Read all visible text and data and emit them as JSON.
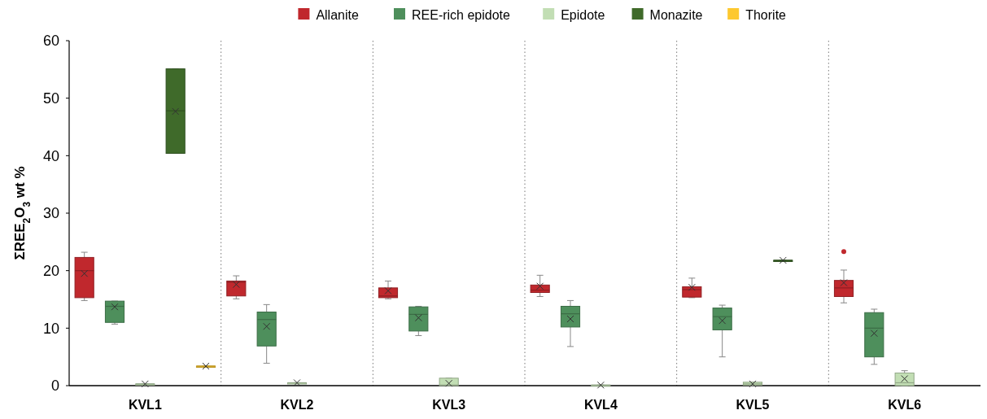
{
  "chart_data": {
    "type": "box",
    "ylabel": "ΣREE$_{2}$O$_{3}$ wt %",
    "categories": [
      "KVL1",
      "KVL2",
      "KVL3",
      "KVL4",
      "KVL5",
      "KVL6"
    ],
    "ylim": [
      0,
      60
    ],
    "yticks": [
      0,
      10,
      20,
      30,
      40,
      50,
      60
    ],
    "grid": false,
    "legend": "top",
    "marker": "cross",
    "series": [
      {
        "name": "Allanite",
        "color": "#c0282d",
        "boxes": [
          {
            "low": 14.8,
            "q1": 15.3,
            "median": 20.0,
            "q3": 22.3,
            "high": 23.2,
            "mean": 19.5
          },
          {
            "low": 15.1,
            "q1": 15.6,
            "median": 18.0,
            "q3": 18.2,
            "high": 19.1,
            "mean": 17.6
          },
          {
            "low": 15.1,
            "q1": 15.3,
            "median": 15.6,
            "q3": 17.0,
            "high": 18.2,
            "mean": 16.5
          },
          {
            "low": 15.5,
            "q1": 16.2,
            "median": 16.6,
            "q3": 17.5,
            "high": 19.2,
            "mean": 17.3
          },
          {
            "low": 15.3,
            "q1": 15.4,
            "median": 16.7,
            "q3": 17.2,
            "high": 18.7,
            "mean": 17.1
          },
          {
            "low": 14.4,
            "q1": 15.5,
            "median": 17.0,
            "q3": 18.3,
            "high": 20.1,
            "mean": 17.9,
            "outliers": [
              23.3
            ]
          }
        ]
      },
      {
        "name": "REE-rich epidote",
        "color": "#4e8f5c",
        "boxes": [
          {
            "low": 10.7,
            "q1": 11.0,
            "median": 13.8,
            "q3": 14.7,
            "high": 14.7,
            "mean": 13.7
          },
          {
            "low": 3.9,
            "q1": 6.9,
            "median": 11.5,
            "q3": 12.8,
            "high": 14.1,
            "mean": 10.3
          },
          {
            "low": 8.7,
            "q1": 9.5,
            "median": 12.4,
            "q3": 13.7,
            "high": 13.8,
            "mean": 11.8
          },
          {
            "low": 6.8,
            "q1": 10.2,
            "median": 12.5,
            "q3": 13.8,
            "high": 14.8,
            "mean": 11.6
          },
          {
            "low": 5.0,
            "q1": 9.7,
            "median": 12.0,
            "q3": 13.5,
            "high": 14.0,
            "mean": 11.3
          },
          {
            "low": 3.7,
            "q1": 5.0,
            "median": 10.0,
            "q3": 12.7,
            "high": 13.3,
            "mean": 9.1
          }
        ]
      },
      {
        "name": "Epidote",
        "color": "#c2deb4",
        "boxes": [
          {
            "low": 0.3,
            "q1": 0.3,
            "median": 0.3,
            "q3": 0.3,
            "high": 0.3,
            "mean": 0.3
          },
          {
            "low": 0.5,
            "q1": 0.5,
            "median": 0.5,
            "q3": 0.5,
            "high": 0.5,
            "mean": 0.5
          },
          {
            "low": 0,
            "q1": 0,
            "median": 0.1,
            "q3": 1.3,
            "high": 1.3,
            "mean": 0.4
          },
          {
            "low": 0.1,
            "q1": 0.1,
            "median": 0.1,
            "q3": 0.1,
            "high": 0.1,
            "mean": 0.1
          },
          {
            "low": 0,
            "q1": 0.1,
            "median": 0.3,
            "q3": 0.6,
            "high": 0.6,
            "mean": 0.3
          },
          {
            "low": 0,
            "q1": 0,
            "median": 0.5,
            "q3": 2.2,
            "high": 2.6,
            "mean": 1.2
          }
        ]
      },
      {
        "name": "Monazite",
        "color": "#3f6a2a",
        "boxes": [
          {
            "low": 40.4,
            "q1": 40.4,
            "median": 47.8,
            "q3": 55.1,
            "high": 55.1,
            "mean": 47.7
          },
          null,
          null,
          null,
          {
            "low": 21.8,
            "q1": 21.8,
            "median": 21.8,
            "q3": 21.8,
            "high": 21.8,
            "mean": 21.8
          },
          null
        ]
      },
      {
        "name": "Thorite",
        "color": "#fdc82f",
        "boxes": [
          {
            "low": 3.4,
            "q1": 3.4,
            "median": 3.4,
            "q3": 3.4,
            "high": 3.4,
            "mean": 3.4
          },
          null,
          null,
          null,
          null,
          null
        ]
      }
    ]
  }
}
